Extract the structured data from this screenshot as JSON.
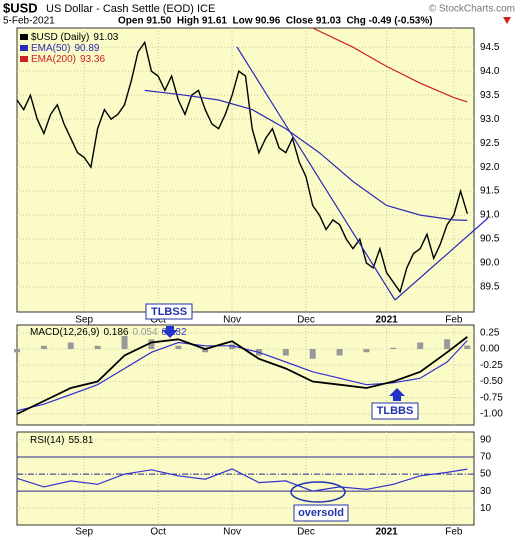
{
  "header": {
    "symbol": "$USD",
    "description": "US Dollar - Cash Settle (EOD) ICE",
    "copyright": "© StockCharts.com",
    "date": "5-Feb-2021",
    "quote": "Open 91.50  High 91.61  Low 90.96  Close 91.03  Chg -0.49 (-0.53%)"
  },
  "chart_data": [
    {
      "type": "line",
      "xlim": [
        0,
        68
      ],
      "ylim": [
        88.98,
        94.9
      ],
      "grid": true,
      "xticks": [
        {
          "value": 10,
          "label": "Sep"
        },
        {
          "value": 21,
          "label": "Oct"
        },
        {
          "value": 32,
          "label": "Nov"
        },
        {
          "value": 43,
          "label": "Dec"
        },
        {
          "value": 55,
          "label": "2021"
        },
        {
          "value": 65,
          "label": "Feb"
        }
      ],
      "yticks": [
        89.5,
        {
          "value": 90,
          "label": "90.0"
        },
        90.5,
        {
          "value": 91,
          "label": "91.0"
        },
        91.5,
        {
          "value": 92,
          "label": "92.0"
        },
        92.5,
        {
          "value": 93,
          "label": "93.0"
        },
        93.5,
        {
          "value": 94,
          "label": "94.0"
        },
        94.5
      ],
      "series": [
        {
          "name": "$USD (Daily)",
          "color": "#000000",
          "values": [
            93.4,
            93.2,
            93.5,
            93.0,
            92.7,
            93.1,
            93.3,
            92.9,
            92.6,
            92.3,
            92.2,
            92.0,
            92.8,
            93.2,
            93.0,
            93.1,
            93.3,
            93.8,
            94.4,
            94.6,
            94.0,
            93.9,
            93.6,
            93.9,
            93.4,
            93.1,
            93.5,
            93.6,
            93.2,
            92.9,
            92.8,
            93.1,
            93.5,
            94.0,
            93.9,
            92.8,
            92.3,
            92.6,
            92.8,
            92.4,
            92.3,
            92.6,
            92.1,
            91.8,
            91.2,
            91.0,
            90.7,
            90.9,
            90.8,
            90.5,
            90.3,
            90.5,
            90.0,
            89.9,
            90.3,
            89.8,
            89.6,
            89.4,
            89.9,
            90.2,
            90.3,
            90.6,
            90.1,
            90.4,
            90.8,
            91.0,
            91.5,
            91.03
          ]
        },
        {
          "name": "EMA(50)",
          "color": "#2b2bb5",
          "x": [
            19,
            25,
            30,
            35,
            40,
            45,
            50,
            55,
            60,
            65,
            67
          ],
          "values": [
            93.6,
            93.5,
            93.4,
            93.2,
            92.8,
            92.3,
            91.7,
            91.2,
            91.0,
            90.9,
            90.89
          ]
        },
        {
          "name": "EMA(200)",
          "color": "#cc2222",
          "x": [
            44,
            50,
            55,
            60,
            65,
            67
          ],
          "values": [
            94.9,
            94.5,
            94.1,
            93.75,
            93.45,
            93.36
          ]
        }
      ]
    },
    {
      "type": "macd",
      "title": "MACD(12,26,9)",
      "xlim": [
        0,
        68
      ],
      "ylim": [
        -1.17,
        0.37
      ],
      "yticks": [
        {
          "value": 0.25,
          "label": "0.25"
        },
        {
          "value": 0,
          "label": "0.00"
        },
        {
          "value": -0.25,
          "label": "-0.25"
        },
        {
          "value": -0.5,
          "label": "-0.50"
        },
        {
          "value": -0.75,
          "label": "-0.75"
        },
        {
          "value": -1,
          "label": "-1.00"
        }
      ],
      "x": [
        0,
        4,
        8,
        12,
        16,
        20,
        24,
        28,
        32,
        36,
        40,
        44,
        48,
        52,
        56,
        60,
        64,
        67
      ],
      "series": [
        {
          "color": "#000000",
          "values": [
            -1.0,
            -0.8,
            -0.6,
            -0.5,
            -0.1,
            0.1,
            0.15,
            0.0,
            0.12,
            -0.15,
            -0.3,
            -0.5,
            -0.55,
            -0.6,
            -0.5,
            -0.35,
            -0.05,
            0.186
          ]
        },
        {
          "color": "#999999",
          "values": [
            -0.05,
            0.05,
            0.1,
            0.05,
            0.2,
            0.15,
            0.05,
            -0.05,
            0.07,
            -0.1,
            -0.1,
            -0.15,
            -0.1,
            -0.05,
            0.02,
            0.1,
            0.15,
            0.054
          ]
        },
        {
          "color": "#3333cc",
          "values": [
            -0.95,
            -0.85,
            -0.7,
            -0.55,
            -0.3,
            -0.05,
            0.1,
            0.05,
            0.05,
            -0.05,
            -0.2,
            -0.35,
            -0.45,
            -0.55,
            -0.52,
            -0.45,
            -0.2,
            0.132
          ]
        }
      ],
      "annotations": [
        "TLBSS",
        "TLBBS"
      ]
    },
    {
      "type": "rsi",
      "title": "RSI(14)",
      "xlim": [
        0,
        68
      ],
      "ylim": [
        -9.7,
        99.3
      ],
      "bands": [
        30,
        70
      ],
      "center": 50,
      "xticks": [
        {
          "value": 10,
          "label": "Sep"
        },
        {
          "value": 21,
          "label": "Oct"
        },
        {
          "value": 32,
          "label": "Nov"
        },
        {
          "value": 43,
          "label": "Dec"
        },
        {
          "value": 55,
          "label": "2021"
        },
        {
          "value": 65,
          "label": "Feb"
        }
      ],
      "yticks": [
        90,
        70,
        50,
        30,
        10
      ],
      "x": [
        0,
        4,
        8,
        12,
        16,
        20,
        24,
        28,
        32,
        36,
        40,
        44,
        48,
        52,
        56,
        60,
        64,
        67
      ],
      "series": [
        {
          "color": "#3333cc",
          "values": [
            45,
            35,
            42,
            38,
            50,
            55,
            48,
            44,
            56,
            40,
            42,
            30,
            35,
            32,
            38,
            48,
            52,
            55.81
          ]
        }
      ],
      "annotations": [
        "oversold"
      ]
    }
  ]
}
